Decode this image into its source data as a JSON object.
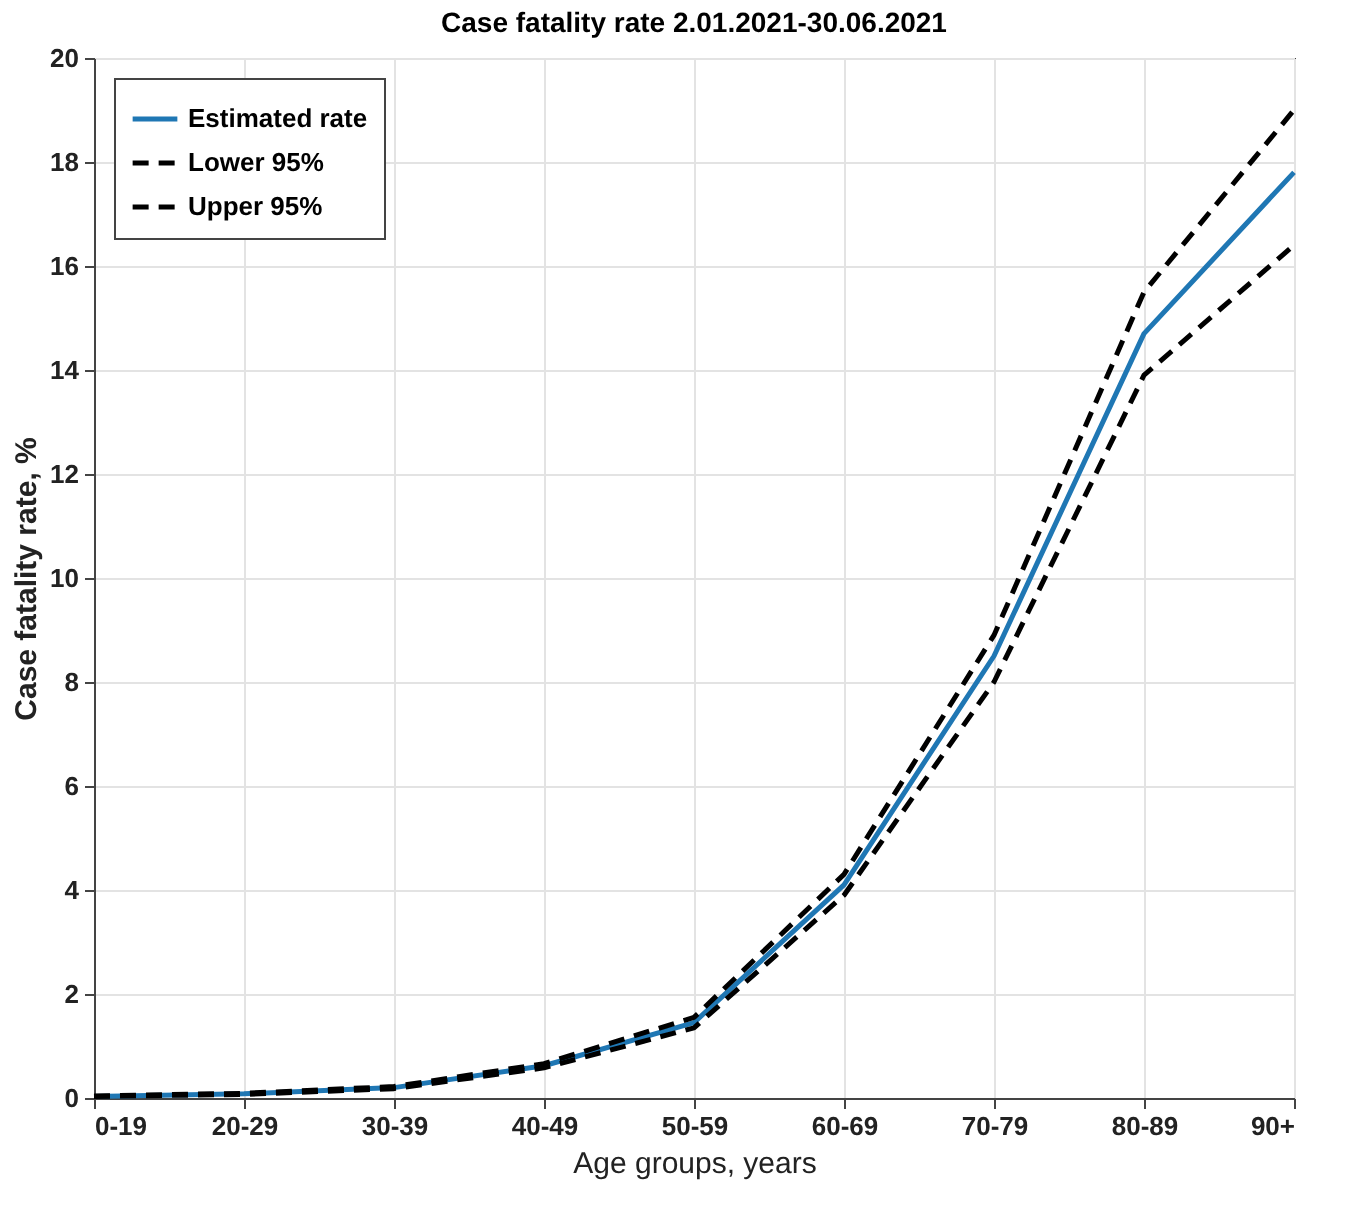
{
  "chart_data": {
    "type": "line",
    "title": "Case fatality rate 2.01.2021-30.06.2021",
    "xlabel": "Age groups, years",
    "ylabel": "Case fatality rate, %",
    "categories": [
      "0-19",
      "20-29",
      "30-39",
      "40-49",
      "50-59",
      "60-69",
      "70-79",
      "80-89",
      "90+"
    ],
    "series": [
      {
        "name": "Estimated rate",
        "color": "#1f77b4",
        "line_style": "solid",
        "values": [
          0.03,
          0.08,
          0.2,
          0.62,
          1.45,
          4.1,
          8.5,
          14.7,
          17.8
        ]
      },
      {
        "name": "Lower 95%",
        "color": "#000000",
        "line_style": "dashed",
        "values": [
          0.03,
          0.07,
          0.18,
          0.58,
          1.35,
          3.9,
          8.0,
          13.9,
          16.4
        ]
      },
      {
        "name": "Upper 95%",
        "color": "#000000",
        "line_style": "dashed",
        "values": [
          0.04,
          0.09,
          0.22,
          0.66,
          1.55,
          4.3,
          8.9,
          15.5,
          19.0
        ]
      }
    ],
    "ylim": [
      0,
      20
    ],
    "yticks": [
      0,
      2,
      4,
      6,
      8,
      10,
      12,
      14,
      16,
      18,
      20
    ],
    "grid": true,
    "legend": "top left"
  }
}
